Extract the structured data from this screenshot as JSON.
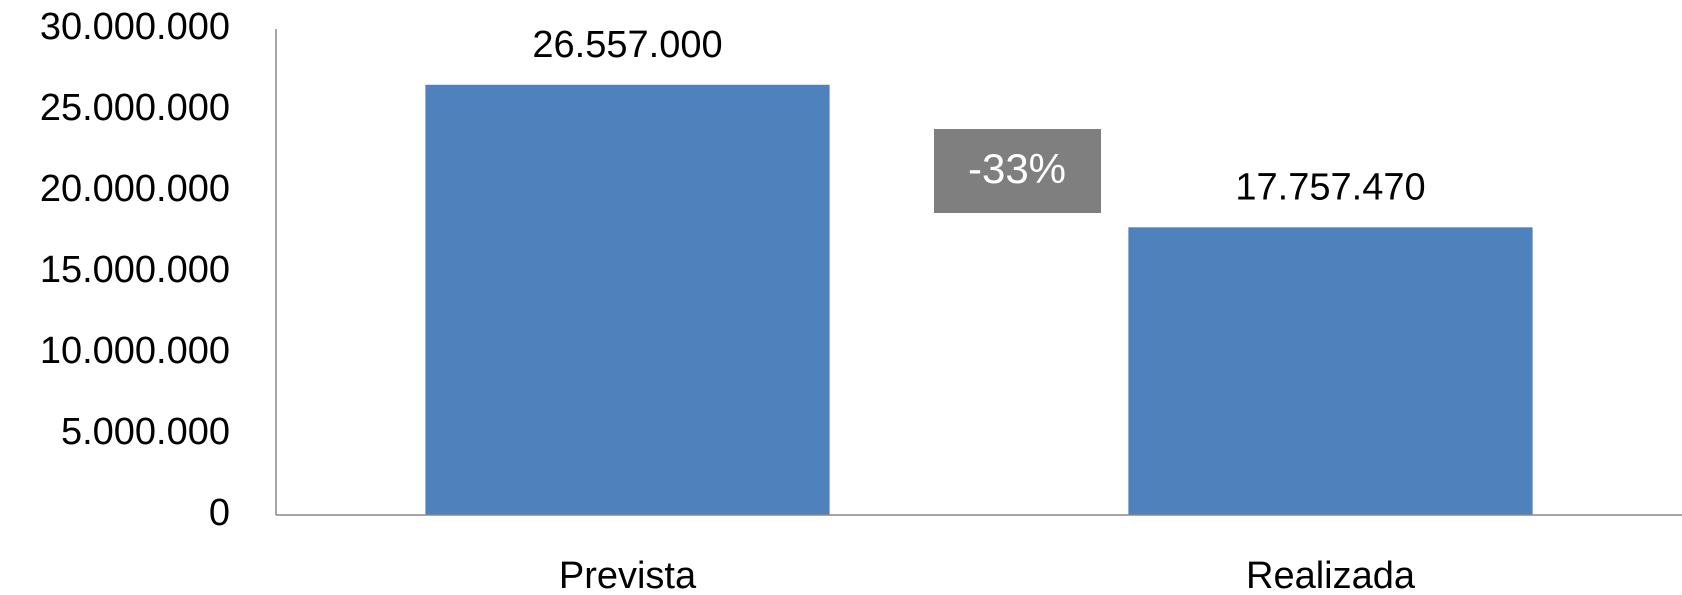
{
  "chart_data": {
    "type": "bar",
    "categories": [
      "Prevista",
      "Realizada"
    ],
    "values": [
      26557000,
      17757470
    ],
    "value_labels": [
      "26.557.000",
      "17.757.470"
    ],
    "color": "#4f81bd",
    "ylim": [
      0,
      30000000
    ],
    "yticks": [
      0,
      {
        "value": 5000000,
        "label": "5.000.000"
      },
      {
        "value": 10000000,
        "label": "10.000.000"
      },
      {
        "value": 15000000,
        "label": "15.000.000"
      },
      {
        "value": 20000000,
        "label": "20.000.000"
      },
      {
        "value": 25000000,
        "label": "25.000.000"
      },
      {
        "value": 30000000,
        "label": "30.000.000"
      }
    ],
    "grid": false,
    "annotation": "-33%"
  }
}
